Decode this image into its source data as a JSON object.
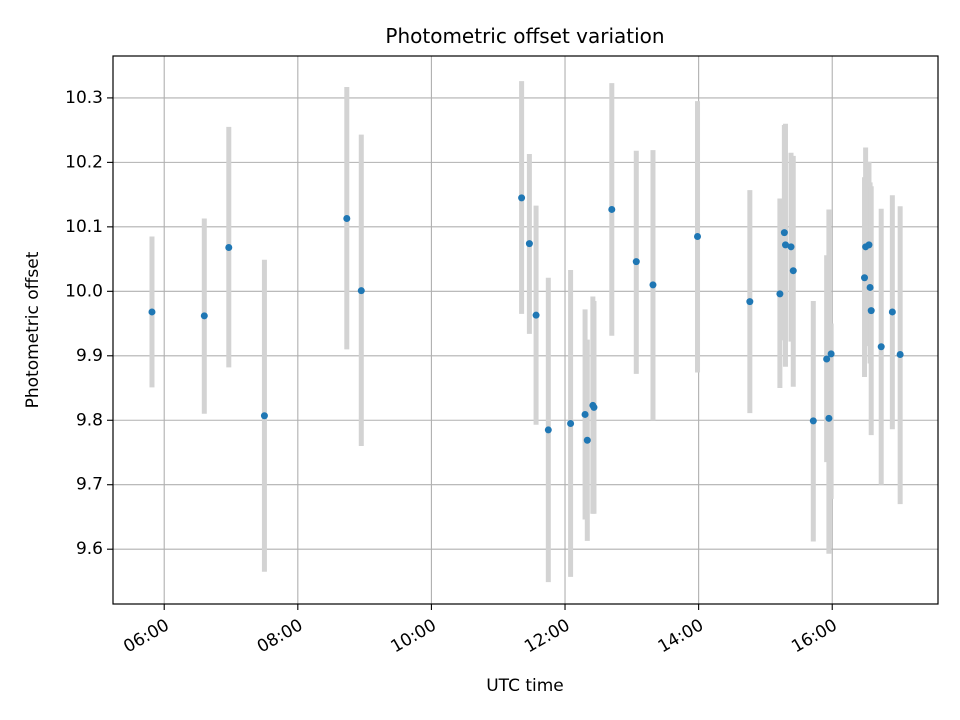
{
  "chart_data": {
    "type": "scatter",
    "title": "Photometric offset variation",
    "xlabel": "UTC time",
    "ylabel": "Photometric offset",
    "x_unit": "time (HH:MM UTC)",
    "xlim": [
      "05:14",
      "17:35"
    ],
    "ylim": [
      9.515,
      10.365
    ],
    "x_ticks": [
      "06:00",
      "08:00",
      "10:00",
      "12:00",
      "14:00",
      "16:00"
    ],
    "y_ticks": [
      9.6,
      9.7,
      9.8,
      9.9,
      10.0,
      10.1,
      10.2,
      10.3
    ],
    "y_tick_labels": [
      "9.6",
      "9.7",
      "9.8",
      "9.9",
      "10.0",
      "10.1",
      "10.2",
      "10.3"
    ],
    "grid": true,
    "x_tick_label_rotation": "rotated ~30° counter-clockwise",
    "marker_color": "#1f77b4",
    "errorbar_color": "#d3d3d3",
    "series": [
      {
        "points": [
          {
            "x": "05:49",
            "y": 9.968,
            "ylow": 9.851,
            "yhigh": 10.085
          },
          {
            "x": "06:36",
            "y": 9.962,
            "ylow": 9.81,
            "yhigh": 10.113
          },
          {
            "x": "06:58",
            "y": 10.068,
            "ylow": 9.882,
            "yhigh": 10.255
          },
          {
            "x": "07:30",
            "y": 9.807,
            "ylow": 9.565,
            "yhigh": 10.049
          },
          {
            "x": "08:44",
            "y": 10.113,
            "ylow": 9.91,
            "yhigh": 10.317
          },
          {
            "x": "08:57",
            "y": 10.001,
            "ylow": 9.76,
            "yhigh": 10.243
          },
          {
            "x": "11:21",
            "y": 10.145,
            "ylow": 9.965,
            "yhigh": 10.326
          },
          {
            "x": "11:28",
            "y": 10.074,
            "ylow": 9.934,
            "yhigh": 10.213
          },
          {
            "x": "11:34",
            "y": 9.963,
            "ylow": 9.793,
            "yhigh": 10.133
          },
          {
            "x": "11:45",
            "y": 9.785,
            "ylow": 9.549,
            "yhigh": 10.021
          },
          {
            "x": "12:05",
            "y": 9.795,
            "ylow": 9.557,
            "yhigh": 10.033
          },
          {
            "x": "12:18",
            "y": 9.809,
            "ylow": 9.646,
            "yhigh": 9.972
          },
          {
            "x": "12:20",
            "y": 9.769,
            "ylow": 9.613,
            "yhigh": 9.925
          },
          {
            "x": "12:25",
            "y": 9.823,
            "ylow": 9.655,
            "yhigh": 9.992
          },
          {
            "x": "12:26",
            "y": 9.82,
            "ylow": 9.655,
            "yhigh": 9.985
          },
          {
            "x": "12:42",
            "y": 10.127,
            "ylow": 9.931,
            "yhigh": 10.323
          },
          {
            "x": "13:04",
            "y": 10.046,
            "ylow": 9.872,
            "yhigh": 10.218
          },
          {
            "x": "13:19",
            "y": 10.01,
            "ylow": 9.8,
            "yhigh": 10.219
          },
          {
            "x": "13:59",
            "y": 10.085,
            "ylow": 9.874,
            "yhigh": 10.295
          },
          {
            "x": "14:46",
            "y": 9.984,
            "ylow": 9.811,
            "yhigh": 10.157
          },
          {
            "x": "15:13",
            "y": 9.996,
            "ylow": 9.85,
            "yhigh": 10.144
          },
          {
            "x": "15:17",
            "y": 10.091,
            "ylow": 9.924,
            "yhigh": 10.258
          },
          {
            "x": "15:18",
            "y": 10.072,
            "ylow": 9.883,
            "yhigh": 10.26
          },
          {
            "x": "15:23",
            "y": 10.069,
            "ylow": 9.922,
            "yhigh": 10.215
          },
          {
            "x": "15:25",
            "y": 10.032,
            "ylow": 9.852,
            "yhigh": 10.21
          },
          {
            "x": "15:43",
            "y": 9.799,
            "ylow": 9.612,
            "yhigh": 9.985
          },
          {
            "x": "15:55",
            "y": 9.895,
            "ylow": 9.735,
            "yhigh": 10.056
          },
          {
            "x": "15:57",
            "y": 9.803,
            "ylow": 9.593,
            "yhigh": 10.127
          },
          {
            "x": "15:59",
            "y": 9.903,
            "ylow": 9.678,
            "yhigh": 9.95
          },
          {
            "x": "16:29",
            "y": 10.021,
            "ylow": 9.867,
            "yhigh": 10.177
          },
          {
            "x": "16:30",
            "y": 10.069,
            "ylow": 9.915,
            "yhigh": 10.223
          },
          {
            "x": "16:33",
            "y": 10.072,
            "ylow": 9.918,
            "yhigh": 10.201
          },
          {
            "x": "16:34",
            "y": 10.006,
            "ylow": 9.888,
            "yhigh": 10.169
          },
          {
            "x": "16:35",
            "y": 9.97,
            "ylow": 9.777,
            "yhigh": 10.163
          },
          {
            "x": "16:44",
            "y": 9.914,
            "ylow": 9.7,
            "yhigh": 10.128
          },
          {
            "x": "16:54",
            "y": 9.968,
            "ylow": 9.786,
            "yhigh": 10.149
          },
          {
            "x": "17:01",
            "y": 9.902,
            "ylow": 9.67,
            "yhigh": 10.132
          }
        ]
      }
    ]
  }
}
